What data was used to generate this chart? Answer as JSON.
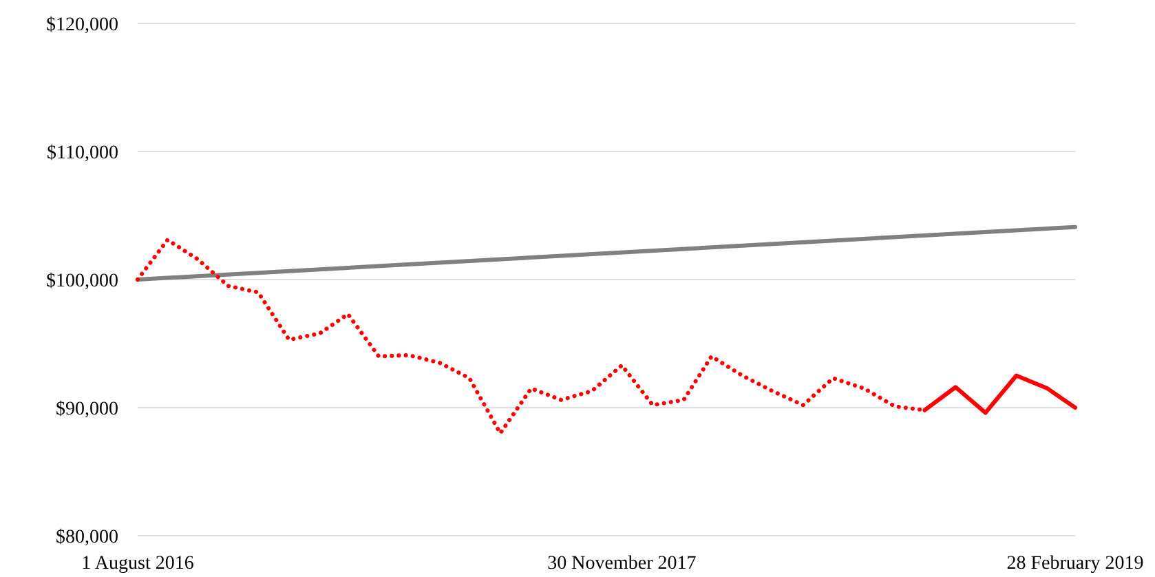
{
  "chart_data": {
    "type": "line",
    "xlim": [
      "2016-08-01",
      "2019-02-28"
    ],
    "xticks": [
      {
        "value": "2016-08-01",
        "label": "1 August 2016"
      },
      {
        "value": "2017-11-30",
        "label": "30 November 2017"
      },
      {
        "value": "2019-02-28",
        "label": "28 February 2019"
      }
    ],
    "ylim": [
      80000,
      120000
    ],
    "yticks": [
      {
        "value": 80000,
        "label": "$80,000"
      },
      {
        "value": 90000,
        "label": "$90,000"
      },
      {
        "value": 100000,
        "label": "$100,000"
      },
      {
        "value": 110000,
        "label": "$110,000"
      },
      {
        "value": 120000,
        "label": "$120,000"
      }
    ],
    "grid": "y",
    "marker": "none",
    "series": [
      {
        "color": "#808080",
        "line_style": "solid",
        "x": [
          "2016-08-01",
          "2019-02-28"
        ],
        "values": [
          100000,
          104100
        ]
      },
      {
        "color": "#ff0000",
        "line_style": "dotted",
        "x": [
          "2016-08-01",
          "2016-08-31",
          "2016-09-30",
          "2016-10-31",
          "2016-11-30",
          "2016-12-31",
          "2017-01-31",
          "2017-02-28",
          "2017-03-31",
          "2017-04-30",
          "2017-05-31",
          "2017-06-30",
          "2017-07-31",
          "2017-08-31",
          "2017-09-30",
          "2017-10-31",
          "2017-11-30",
          "2017-12-31",
          "2018-01-31",
          "2018-02-28",
          "2018-03-31",
          "2018-04-30",
          "2018-05-31",
          "2018-06-30",
          "2018-07-31",
          "2018-08-31",
          "2018-09-30"
        ],
        "values": [
          100000,
          103100,
          101600,
          99500,
          99000,
          95300,
          95800,
          97300,
          94000,
          94100,
          93500,
          92300,
          88000,
          91500,
          90600,
          91300,
          93300,
          90200,
          90600,
          94000,
          92500,
          91300,
          90200,
          92300,
          91500,
          90100,
          89800
        ]
      },
      {
        "color": "#ff0000",
        "line_style": "solid",
        "x": [
          "2018-09-30",
          "2018-10-31",
          "2018-11-30",
          "2018-12-31",
          "2019-01-31",
          "2019-02-28"
        ],
        "values": [
          89800,
          91600,
          89600,
          92500,
          91500,
          90000
        ]
      }
    ]
  }
}
